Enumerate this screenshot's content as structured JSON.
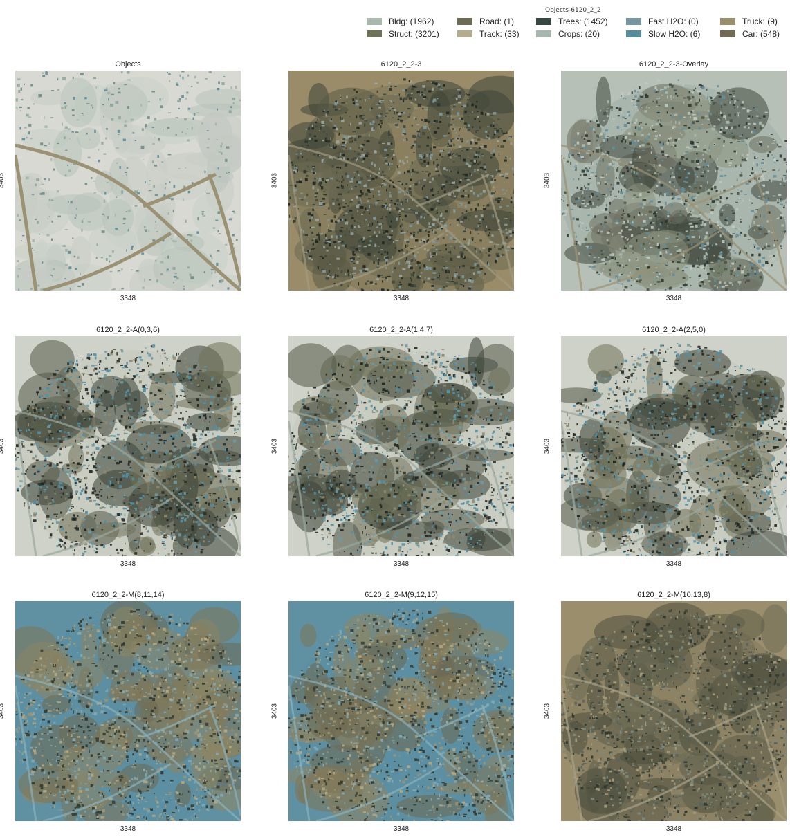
{
  "legend": {
    "title": "Objects-6120_2_2",
    "items": [
      {
        "label": "Bldg: (1962)",
        "color": "#a9b9ad"
      },
      {
        "label": "Struct: (3201)",
        "color": "#6e7256"
      },
      {
        "label": "Road: (1)",
        "color": "#6d6b55"
      },
      {
        "label": "Track: (33)",
        "color": "#b3ac8e"
      },
      {
        "label": "Trees: (1452)",
        "color": "#364841"
      },
      {
        "label": "Crops: (20)",
        "color": "#a6b8ae"
      },
      {
        "label": "Fast H2O: (0)",
        "color": "#7796a0"
      },
      {
        "label": "Slow H2O: (6)",
        "color": "#568d9c"
      },
      {
        "label": "Truck: (9)",
        "color": "#9a8f6d"
      },
      {
        "label": "Car: (548)",
        "color": "#716a55"
      }
    ]
  },
  "panels": [
    {
      "title": "Objects",
      "xlabel": "3348",
      "ylabel": "3403",
      "style": "objects"
    },
    {
      "title": "6120_2_2-3",
      "xlabel": "3348",
      "ylabel": "3403",
      "style": "rgb"
    },
    {
      "title": "6120_2_2-3-Overlay",
      "xlabel": "3348",
      "ylabel": "3403",
      "style": "overlay"
    },
    {
      "title": "6120_2_2-A(0,3,6)",
      "xlabel": "3348",
      "ylabel": "3403",
      "style": "aband"
    },
    {
      "title": "6120_2_2-A(1,4,7)",
      "xlabel": "3348",
      "ylabel": "3403",
      "style": "aband"
    },
    {
      "title": "6120_2_2-A(2,5,0)",
      "xlabel": "3348",
      "ylabel": "3403",
      "style": "aband"
    },
    {
      "title": "6120_2_2-M(8,11,14)",
      "xlabel": "3348",
      "ylabel": "3403",
      "style": "mband"
    },
    {
      "title": "6120_2_2-M(9,12,15)",
      "xlabel": "3348",
      "ylabel": "3403",
      "style": "mband"
    },
    {
      "title": "6120_2_2-M(10,13,8)",
      "xlabel": "3348",
      "ylabel": "3403",
      "style": "mrgb"
    }
  ]
}
